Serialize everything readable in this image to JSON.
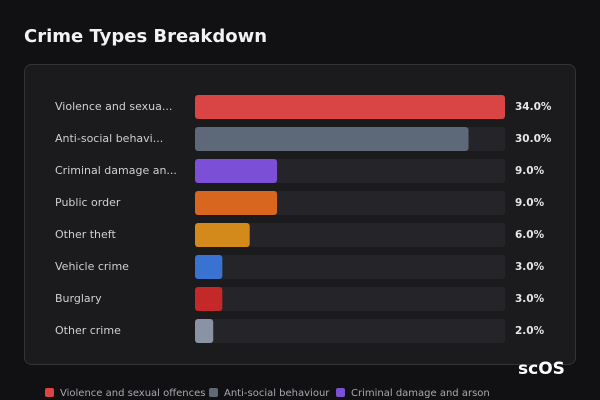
{
  "chart_data": {
    "type": "hbar",
    "title": "Crime Types Breakdown",
    "categories": [
      "Violence and sexua...",
      "Anti-social behavi...",
      "Criminal damage an...",
      "Public order",
      "Other theft",
      "Vehicle crime",
      "Burglary",
      "Other crime"
    ],
    "values": [
      34,
      30,
      9,
      9,
      6,
      3,
      3,
      2
    ],
    "value_labels": [
      "34.0%",
      "30.0%",
      "9.0%",
      "9.0%",
      "6.0%",
      "3.0%",
      "3.0%",
      "2.0%"
    ],
    "colors": [
      "#d94545",
      "#5d6878",
      "#7b4fd6",
      "#d9661f",
      "#d48a1a",
      "#3a72d1",
      "#c42828",
      "#8a93a3"
    ],
    "xlim": [
      0,
      34
    ],
    "legend": [
      {
        "name": "Violence and sexual offences",
        "color": "#d94545"
      },
      {
        "name": "Anti-social behaviour",
        "color": "#5d6878"
      },
      {
        "name": "Criminal damage and arson",
        "color": "#7b4fd6"
      }
    ],
    "watermark": "scOS"
  }
}
